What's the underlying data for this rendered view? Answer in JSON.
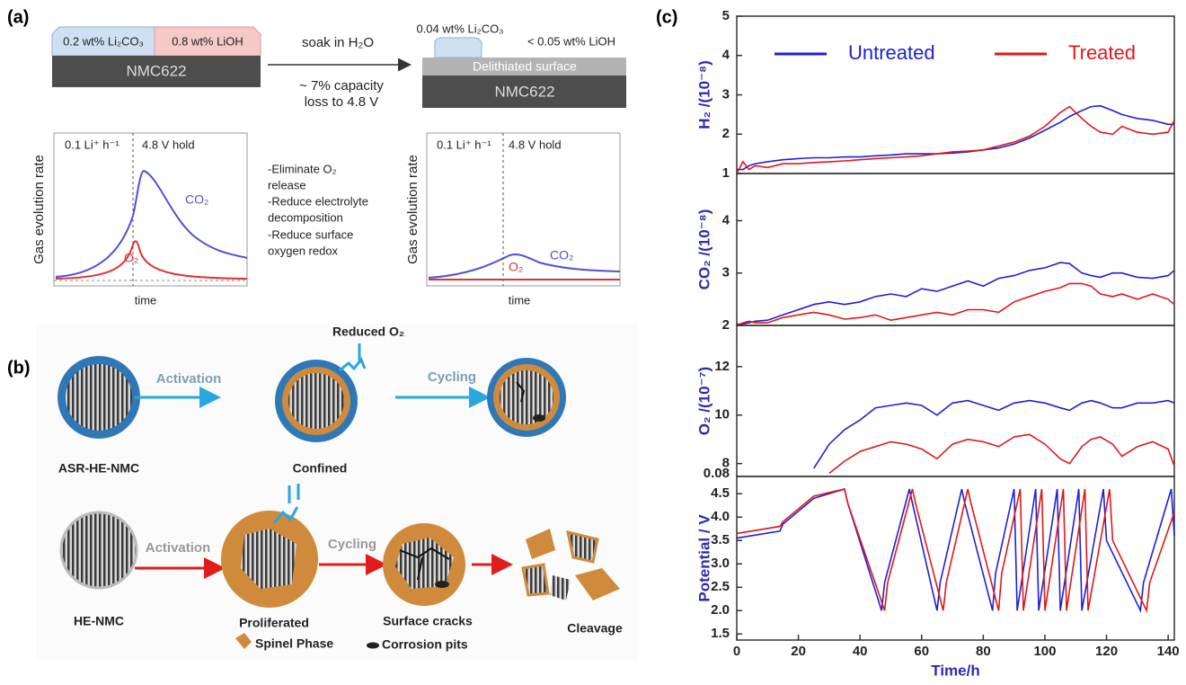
{
  "panel_a": {
    "label": "(a)",
    "before": {
      "carbonate": "0.2 wt% Li₂CO₃",
      "hydroxide": "0.8 wt% LiOH",
      "bulk": "NMC622"
    },
    "process": {
      "step": "soak in H₂O",
      "result_lines": [
        "~ 7% capacity",
        "loss to 4.8 V"
      ]
    },
    "after": {
      "carbonate": "0.04 wt% Li₂CO₃",
      "hydroxide": "< 0.05 wt% LiOH",
      "surface": "Delithiated surface",
      "bulk": "NMC622"
    },
    "left_plot": {
      "y_label": "Gas evolution rate",
      "x_label": "time",
      "rate": "0.1 Li⁺ h⁻¹",
      "hold": "4.8 V hold",
      "co2": "CO₂",
      "o2": "O₂"
    },
    "benefits": [
      "-Eliminate O₂",
      "release",
      "-Reduce electrolyte",
      "decomposition",
      "-Reduce surface",
      "oxygen redox"
    ],
    "right_plot": {
      "y_label": "Gas evolution rate",
      "x_label": "time",
      "rate": "0.1 Li⁺ h⁻¹",
      "hold": "4.8 V hold",
      "co2": "CO₂",
      "o2": "O₂"
    }
  },
  "panel_b": {
    "label": "(b)",
    "reduced_o2": "Reduced O₂",
    "row1": {
      "start": "ASR-HE-NMC",
      "step1": "Activation",
      "middle": "Confined",
      "step2": "Cycling"
    },
    "row2": {
      "start": "HE-NMC",
      "step1": "Activation",
      "middle": "Proliferated",
      "step2": "Cycling",
      "cracked": "Surface cracks",
      "end": "Cleavage"
    },
    "legend": {
      "spinel": "Spinel Phase",
      "pits": "Corrosion pits"
    }
  },
  "panel_c": {
    "label": "(c)"
  },
  "chart_data": [
    {
      "type": "line",
      "y_label": "H₂ /(10⁻⁸)",
      "legend": "top",
      "xlim": [
        0,
        142
      ],
      "ylim": [
        1,
        5
      ],
      "yticks": [
        1,
        2,
        3,
        4,
        5
      ],
      "x": [
        0,
        2,
        4,
        6,
        10,
        15,
        20,
        25,
        30,
        35,
        40,
        45,
        50,
        55,
        60,
        65,
        70,
        75,
        80,
        85,
        90,
        95,
        100,
        105,
        108,
        112,
        115,
        118,
        122,
        125,
        130,
        135,
        140,
        142
      ],
      "series": [
        {
          "name": "Untreated",
          "color": "#1f1fd6",
          "values": [
            1.1,
            1.1,
            1.2,
            1.25,
            1.3,
            1.35,
            1.38,
            1.4,
            1.4,
            1.42,
            1.42,
            1.45,
            1.47,
            1.5,
            1.5,
            1.5,
            1.52,
            1.55,
            1.6,
            1.65,
            1.75,
            1.9,
            2.1,
            2.3,
            2.45,
            2.6,
            2.7,
            2.72,
            2.6,
            2.5,
            2.4,
            2.35,
            2.25,
            2.25
          ]
        },
        {
          "name": "Treated",
          "color": "#e01818",
          "values": [
            1.0,
            1.3,
            1.1,
            1.2,
            1.15,
            1.25,
            1.25,
            1.28,
            1.3,
            1.32,
            1.35,
            1.38,
            1.4,
            1.42,
            1.45,
            1.5,
            1.55,
            1.57,
            1.6,
            1.7,
            1.8,
            1.95,
            2.2,
            2.55,
            2.7,
            2.4,
            2.2,
            2.05,
            2.0,
            2.2,
            2.05,
            2.0,
            2.05,
            2.35
          ]
        }
      ]
    },
    {
      "type": "line",
      "y_label": "CO₂ /(10⁻⁸)",
      "xlim": [
        0,
        142
      ],
      "ylim": [
        2,
        4.9
      ],
      "yticks": [
        2,
        3,
        4
      ],
      "x": [
        0,
        2,
        4,
        6,
        10,
        15,
        20,
        25,
        30,
        35,
        40,
        45,
        50,
        55,
        60,
        65,
        70,
        75,
        80,
        85,
        90,
        95,
        100,
        105,
        108,
        112,
        115,
        118,
        122,
        125,
        130,
        135,
        140,
        142
      ],
      "series": [
        {
          "color": "#1f1fd6",
          "values": [
            2.02,
            2.03,
            2.05,
            2.08,
            2.1,
            2.2,
            2.3,
            2.4,
            2.45,
            2.4,
            2.45,
            2.55,
            2.6,
            2.55,
            2.7,
            2.65,
            2.75,
            2.85,
            2.75,
            2.9,
            2.95,
            3.05,
            3.1,
            3.2,
            3.18,
            3.0,
            2.95,
            2.92,
            3.0,
            3.0,
            2.92,
            2.9,
            2.95,
            3.05
          ]
        },
        {
          "color": "#e01818",
          "values": [
            2.0,
            2.05,
            2.08,
            2.05,
            2.05,
            2.15,
            2.2,
            2.25,
            2.2,
            2.12,
            2.15,
            2.2,
            2.1,
            2.15,
            2.2,
            2.25,
            2.2,
            2.3,
            2.3,
            2.25,
            2.45,
            2.55,
            2.65,
            2.72,
            2.8,
            2.8,
            2.75,
            2.6,
            2.55,
            2.6,
            2.5,
            2.6,
            2.5,
            2.4
          ]
        }
      ]
    },
    {
      "type": "line",
      "y_label": "O₂ /(10⁻⁷)",
      "axis_break_label": "0.08",
      "xlim": [
        0,
        142
      ],
      "ylim": [
        7.47,
        13.7
      ],
      "yticks": [
        8,
        10,
        12
      ],
      "x": [
        0,
        2,
        4,
        6,
        10,
        15,
        20,
        25,
        30,
        35,
        40,
        45,
        50,
        55,
        60,
        65,
        70,
        75,
        80,
        85,
        90,
        95,
        100,
        105,
        108,
        112,
        115,
        118,
        122,
        125,
        130,
        135,
        140,
        142
      ],
      "series": [
        {
          "color": "#1f1fd6",
          "values": [
            null,
            null,
            null,
            null,
            null,
            null,
            null,
            7.8,
            8.8,
            9.4,
            9.8,
            10.3,
            10.4,
            10.5,
            10.4,
            10.0,
            10.5,
            10.6,
            10.4,
            10.2,
            10.5,
            10.6,
            10.5,
            10.3,
            10.2,
            10.5,
            10.6,
            10.5,
            10.3,
            10.3,
            10.5,
            10.5,
            10.6,
            10.5
          ]
        },
        {
          "color": "#e01818",
          "values": [
            null,
            null,
            null,
            null,
            null,
            null,
            null,
            null,
            7.6,
            8.1,
            8.5,
            8.7,
            8.9,
            8.8,
            8.6,
            8.2,
            8.8,
            9.0,
            8.9,
            8.7,
            9.1,
            9.2,
            8.8,
            8.2,
            8.0,
            8.7,
            9.0,
            9.1,
            8.8,
            8.3,
            8.7,
            8.9,
            8.6,
            7.9
          ]
        }
      ]
    },
    {
      "type": "line",
      "y_label": "Potential / V",
      "x_label": "Time/h",
      "xlim": [
        0,
        142
      ],
      "ylim": [
        1.37,
        4.87
      ],
      "xticks": [
        0,
        20,
        40,
        60,
        80,
        100,
        120,
        140
      ],
      "yticks": [
        1.5,
        {
          "value": 2,
          "label": "2.0"
        },
        2.5,
        {
          "value": 3,
          "label": "3.0"
        },
        3.5,
        {
          "value": 4,
          "label": "4.0"
        },
        4.5
      ],
      "series": [
        {
          "color": "#1f1fd6",
          "x": [
            0,
            14,
            15,
            25,
            35,
            36,
            47,
            48,
            56,
            57,
            65,
            66,
            73,
            74,
            83,
            84,
            90,
            91,
            97,
            98,
            104,
            105,
            111,
            112,
            119,
            120,
            131,
            132,
            141,
            142
          ],
          "values": [
            3.55,
            3.7,
            3.85,
            4.4,
            4.6,
            4.3,
            2.0,
            2.6,
            4.6,
            4.3,
            2.0,
            2.6,
            4.6,
            4.3,
            2.0,
            2.8,
            4.6,
            2.0,
            4.6,
            2.0,
            4.6,
            2.0,
            4.6,
            2.0,
            4.6,
            3.5,
            2.0,
            2.6,
            4.6,
            3.6
          ]
        },
        {
          "color": "#e01818",
          "x": [
            0,
            14,
            15,
            25,
            35,
            36,
            48,
            49,
            57,
            58,
            67,
            68,
            75,
            76,
            85,
            86,
            92,
            93,
            99,
            100,
            106,
            107,
            113,
            114,
            121,
            122,
            133,
            134,
            142
          ],
          "values": [
            3.65,
            3.8,
            3.9,
            4.45,
            4.6,
            4.3,
            2.0,
            2.6,
            4.6,
            4.3,
            2.0,
            2.6,
            4.6,
            4.3,
            2.0,
            2.8,
            4.6,
            2.0,
            4.6,
            2.0,
            4.6,
            2.0,
            4.6,
            2.0,
            4.6,
            3.5,
            2.0,
            2.6,
            4.1
          ]
        }
      ]
    }
  ]
}
